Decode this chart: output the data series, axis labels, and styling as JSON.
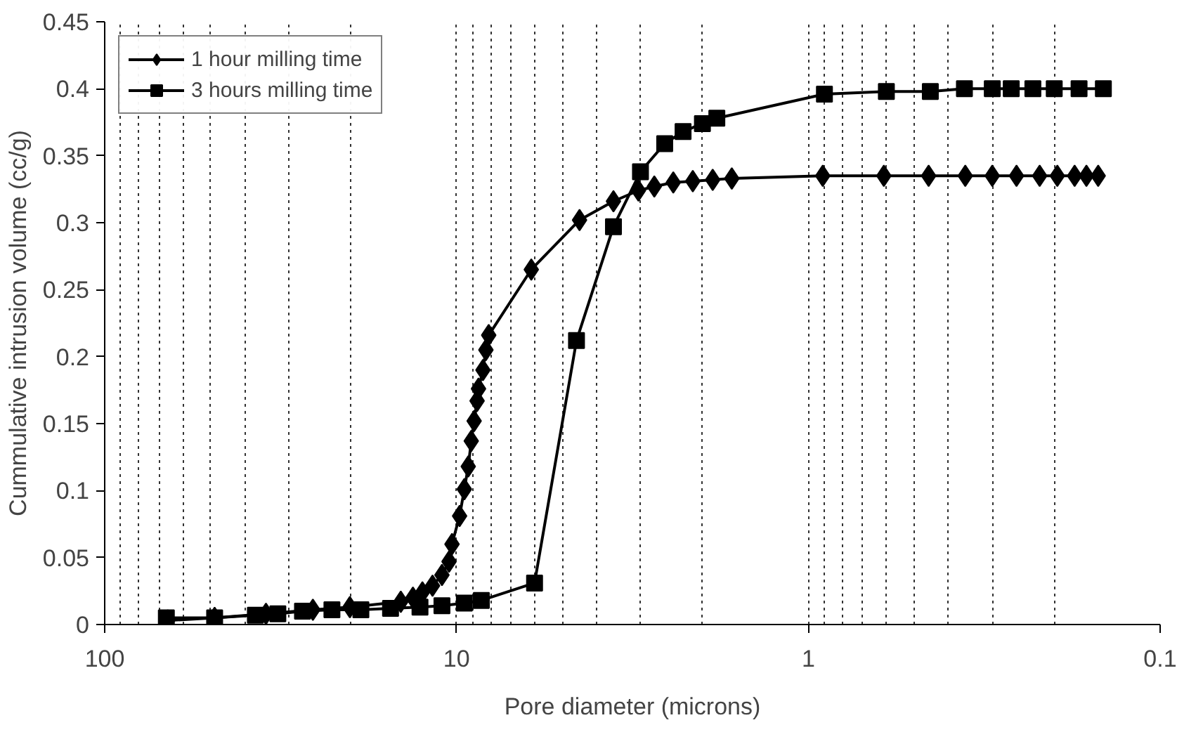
{
  "chart_data": {
    "type": "line",
    "xlabel": "Pore diameter (microns)",
    "ylabel": "Cummulative intrusion volume (cc/g)",
    "log": "x",
    "xlim": [
      100,
      0.1
    ],
    "xticks": [
      100,
      10,
      1,
      0.1
    ],
    "ylim": [
      0,
      0.45
    ],
    "yticks": [
      0,
      0.05,
      0.1,
      0.15,
      0.2,
      0.25,
      0.3,
      0.35,
      0.4,
      0.45
    ],
    "grid": "x",
    "legend": "top left",
    "line_style": "solid",
    "series": [
      {
        "name": "1 hour milling time",
        "color": "#000000",
        "marker": "diamond",
        "x": [
          66.2,
          48.7,
          34.8,
          25.6,
          20.1,
          14.4,
          13.3,
          12.5,
          11.7,
          11.0,
          10.5,
          10.3,
          9.8,
          9.5,
          9.26,
          9.08,
          8.91,
          8.74,
          8.66,
          8.41,
          8.25,
          8.1,
          6.13,
          4.47,
          3.58,
          3.04,
          2.74,
          2.42,
          2.13,
          1.87,
          1.65,
          0.91,
          0.61,
          0.455,
          0.358,
          0.3,
          0.256,
          0.22,
          0.196,
          0.175,
          0.162,
          0.15
        ],
        "values": [
          0.003,
          0.005,
          0.008,
          0.011,
          0.013,
          0.017,
          0.02,
          0.024,
          0.029,
          0.037,
          0.047,
          0.06,
          0.081,
          0.101,
          0.118,
          0.137,
          0.152,
          0.167,
          0.176,
          0.19,
          0.205,
          0.216,
          0.265,
          0.302,
          0.316,
          0.324,
          0.327,
          0.33,
          0.331,
          0.332,
          0.333,
          0.335,
          0.335,
          0.335,
          0.335,
          0.335,
          0.335,
          0.335,
          0.335,
          0.335,
          0.335,
          0.335
        ]
      },
      {
        "name": "3 hours milling time",
        "color": "#000000",
        "marker": "square",
        "x": [
          66.8,
          48.7,
          37.3,
          32.2,
          27.4,
          22.6,
          18.7,
          15.4,
          12.7,
          11.0,
          9.5,
          8.5,
          6.0,
          4.56,
          3.58,
          3.0,
          2.56,
          2.27,
          2.0,
          1.82,
          0.9,
          0.6,
          0.45,
          0.36,
          0.3,
          0.265,
          0.23,
          0.2,
          0.17,
          0.145
        ],
        "values": [
          0.005,
          0.005,
          0.007,
          0.008,
          0.01,
          0.011,
          0.011,
          0.012,
          0.013,
          0.014,
          0.016,
          0.018,
          0.031,
          0.212,
          0.297,
          0.338,
          0.359,
          0.368,
          0.374,
          0.378,
          0.396,
          0.398,
          0.398,
          0.4,
          0.4,
          0.4,
          0.4,
          0.4,
          0.4,
          0.4
        ]
      }
    ]
  }
}
